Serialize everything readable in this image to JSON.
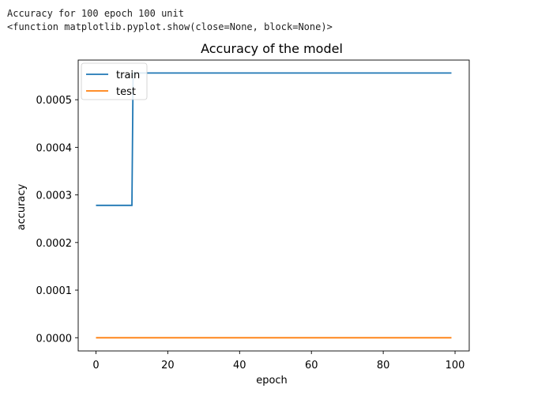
{
  "output": {
    "line1": "Accuracy for 100 epoch 100 unit",
    "line2": "<function matplotlib.pyplot.show(close=None, block=None)>"
  },
  "chart_data": {
    "type": "line",
    "title": "Accuracy of the model",
    "xlabel": "epoch",
    "ylabel": "accuracy",
    "xlim": [
      -4.95,
      103.95
    ],
    "ylim": [
      -2.78e-05,
      0.0005833
    ],
    "xticks": [
      0,
      20,
      40,
      60,
      80,
      100
    ],
    "xtick_labels": [
      "0",
      "20",
      "40",
      "60",
      "80",
      "100"
    ],
    "yticks": [
      0,
      0.0001,
      0.0002,
      0.0003,
      0.0004,
      0.0005
    ],
    "ytick_labels": [
      "0.0000",
      "0.0001",
      "0.0002",
      "0.0003",
      "0.0004",
      "0.0005"
    ],
    "legend_position": "top-left",
    "grid": false,
    "series": [
      {
        "name": "train",
        "color": "#1f77b4",
        "x": [
          0,
          1,
          2,
          3,
          4,
          5,
          6,
          7,
          8,
          9,
          10,
          11,
          99
        ],
        "y": [
          0.000278,
          0.000278,
          0.000278,
          0.000278,
          0.000278,
          0.000278,
          0.000278,
          0.000278,
          0.000278,
          0.000278,
          0.000278,
          0.000556,
          0.000556
        ]
      },
      {
        "name": "test",
        "color": "#ff7f0e",
        "x": [
          0,
          99
        ],
        "y": [
          0,
          0
        ]
      }
    ]
  }
}
